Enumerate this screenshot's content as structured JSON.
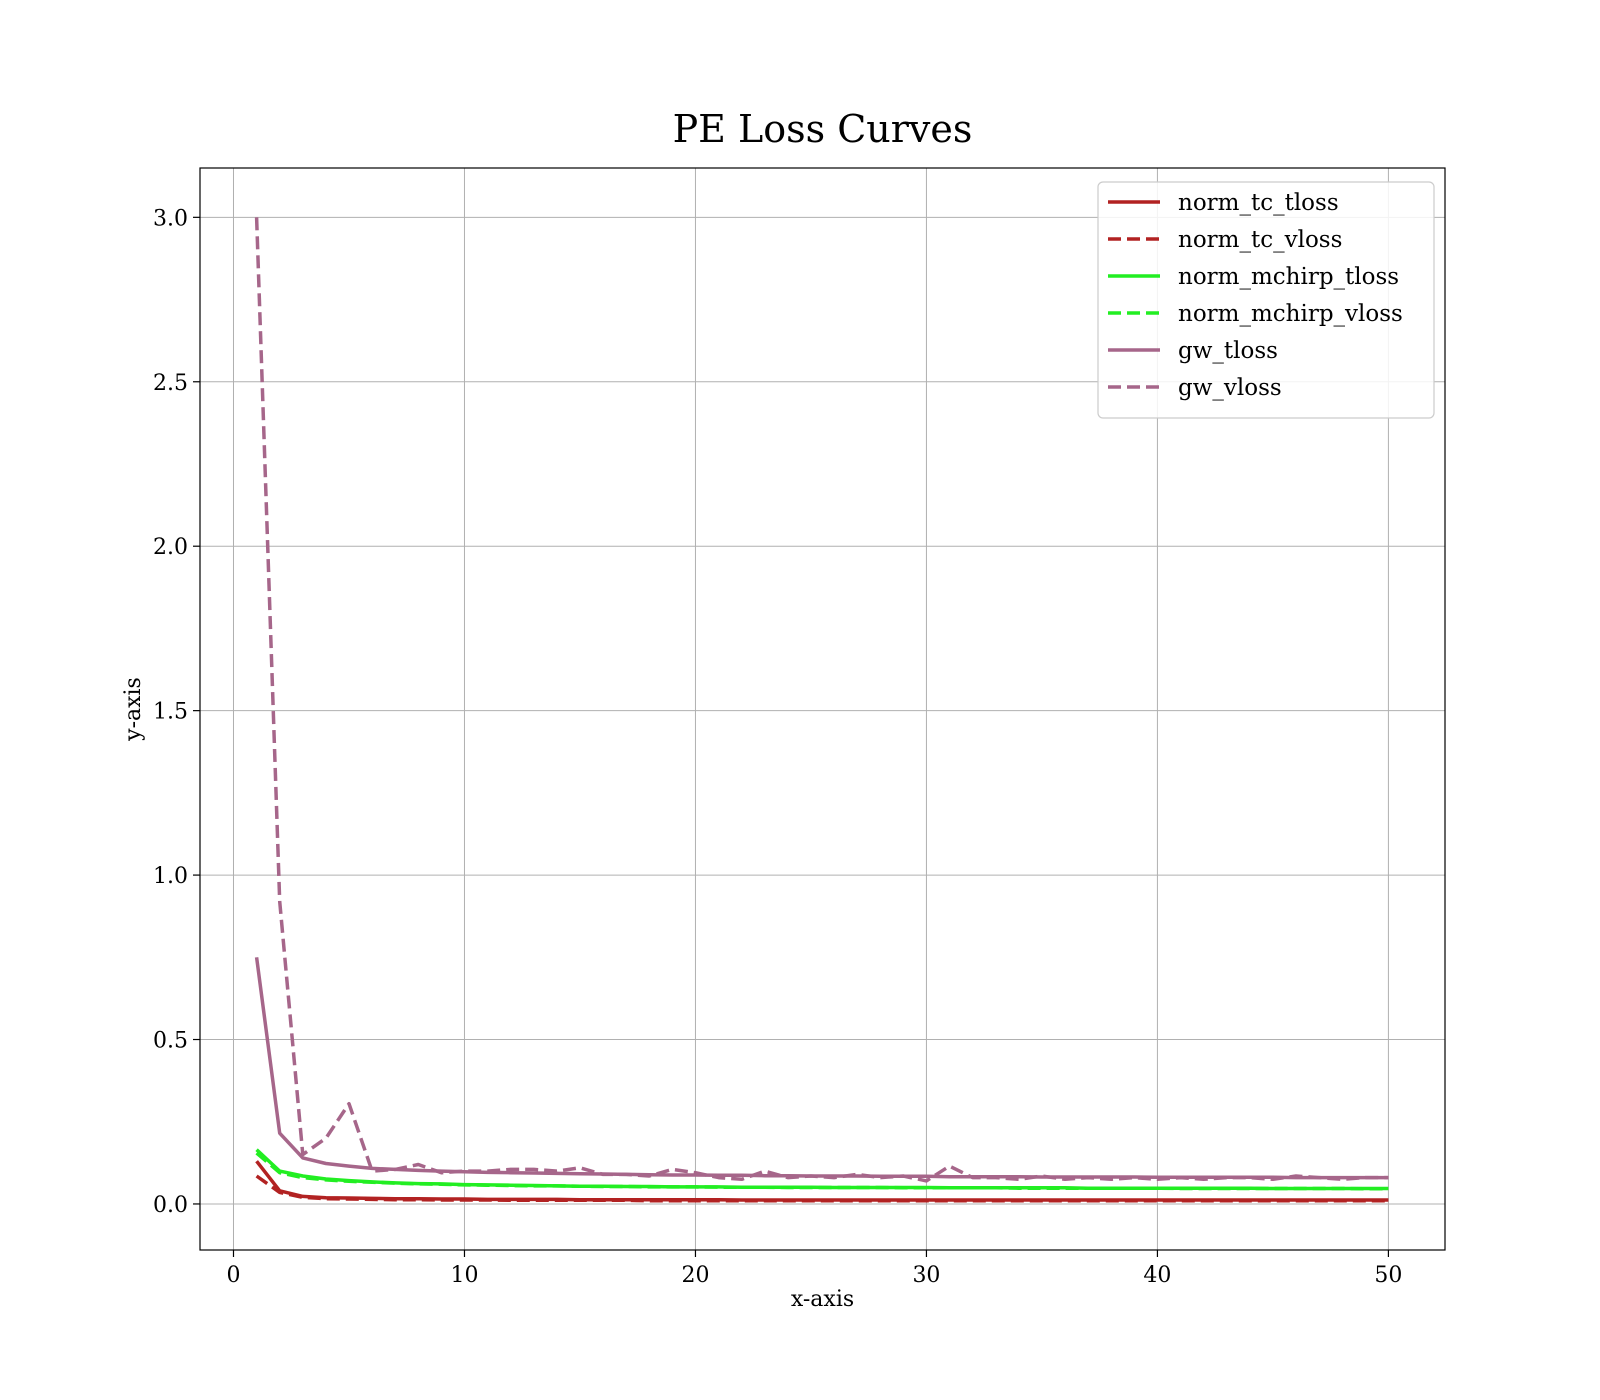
{
  "chart_data": {
    "type": "line",
    "title": "PE Loss Curves",
    "xlabel": "x-axis",
    "ylabel": "y-axis",
    "xlim": [
      -1.45,
      52.45
    ],
    "ylim": [
      -0.14,
      3.15
    ],
    "xticks": [
      0,
      10,
      20,
      30,
      40,
      50
    ],
    "yticks": [
      0.0,
      0.5,
      1.0,
      1.5,
      2.0,
      2.5,
      3.0
    ],
    "xtick_labels": [
      "0",
      "10",
      "20",
      "30",
      "40",
      "50"
    ],
    "ytick_labels": [
      "0.0",
      "0.5",
      "1.0",
      "1.5",
      "2.0",
      "2.5",
      "3.0"
    ],
    "grid": true,
    "legend_position": "top-right",
    "series": [
      {
        "name": "norm_tc_tloss",
        "color": "#b22222",
        "dash": "solid",
        "x": [
          1,
          2,
          3,
          4,
          5,
          6,
          7,
          8,
          9,
          10,
          11,
          12,
          13,
          14,
          15,
          16,
          17,
          18,
          19,
          20,
          21,
          22,
          23,
          24,
          25,
          26,
          27,
          28,
          29,
          30,
          31,
          32,
          33,
          34,
          35,
          36,
          37,
          38,
          39,
          40,
          41,
          42,
          43,
          44,
          45,
          46,
          47,
          48,
          49,
          50
        ],
        "y": [
          0.13,
          0.04,
          0.023,
          0.019,
          0.018,
          0.017,
          0.016,
          0.016,
          0.015,
          0.015,
          0.014,
          0.014,
          0.014,
          0.014,
          0.013,
          0.013,
          0.013,
          0.013,
          0.013,
          0.013,
          0.013,
          0.012,
          0.012,
          0.012,
          0.012,
          0.012,
          0.012,
          0.012,
          0.012,
          0.012,
          0.012,
          0.012,
          0.012,
          0.012,
          0.012,
          0.012,
          0.012,
          0.012,
          0.012,
          0.012,
          0.012,
          0.012,
          0.012,
          0.012,
          0.012,
          0.012,
          0.012,
          0.012,
          0.012,
          0.012
        ]
      },
      {
        "name": "norm_tc_vloss",
        "color": "#b22222",
        "dash": "dashed",
        "x": [
          1,
          2,
          3,
          4,
          5,
          6,
          7,
          8,
          9,
          10,
          11,
          12,
          13,
          14,
          15,
          16,
          17,
          18,
          19,
          20,
          21,
          22,
          23,
          24,
          25,
          26,
          27,
          28,
          29,
          30,
          31,
          32,
          33,
          34,
          35,
          36,
          37,
          38,
          39,
          40,
          41,
          42,
          43,
          44,
          45,
          46,
          47,
          48,
          49,
          50
        ],
        "y": [
          0.085,
          0.035,
          0.02,
          0.016,
          0.015,
          0.014,
          0.013,
          0.013,
          0.012,
          0.012,
          0.012,
          0.011,
          0.011,
          0.011,
          0.011,
          0.011,
          0.011,
          0.01,
          0.01,
          0.01,
          0.01,
          0.01,
          0.01,
          0.01,
          0.01,
          0.01,
          0.01,
          0.01,
          0.01,
          0.01,
          0.01,
          0.01,
          0.01,
          0.01,
          0.01,
          0.01,
          0.01,
          0.01,
          0.01,
          0.01,
          0.01,
          0.01,
          0.01,
          0.01,
          0.01,
          0.01,
          0.01,
          0.01,
          0.01,
          0.01
        ]
      },
      {
        "name": "norm_mchirp_tloss",
        "color": "#22ee22",
        "dash": "solid",
        "x": [
          1,
          2,
          3,
          4,
          5,
          6,
          7,
          8,
          9,
          10,
          11,
          12,
          13,
          14,
          15,
          16,
          17,
          18,
          19,
          20,
          21,
          22,
          23,
          24,
          25,
          26,
          27,
          28,
          29,
          30,
          31,
          32,
          33,
          34,
          35,
          36,
          37,
          38,
          39,
          40,
          41,
          42,
          43,
          44,
          45,
          46,
          47,
          48,
          49,
          50
        ],
        "y": [
          0.165,
          0.1,
          0.085,
          0.076,
          0.071,
          0.067,
          0.064,
          0.062,
          0.061,
          0.059,
          0.058,
          0.057,
          0.056,
          0.055,
          0.054,
          0.054,
          0.053,
          0.053,
          0.052,
          0.052,
          0.052,
          0.051,
          0.051,
          0.051,
          0.051,
          0.05,
          0.05,
          0.05,
          0.05,
          0.05,
          0.049,
          0.049,
          0.049,
          0.049,
          0.049,
          0.049,
          0.048,
          0.048,
          0.048,
          0.048,
          0.048,
          0.048,
          0.048,
          0.048,
          0.047,
          0.047,
          0.047,
          0.047,
          0.047,
          0.047
        ]
      },
      {
        "name": "norm_mchirp_vloss",
        "color": "#22ee22",
        "dash": "dashed",
        "x": [
          1,
          2,
          3,
          4,
          5,
          6,
          7,
          8,
          9,
          10,
          11,
          12,
          13,
          14,
          15,
          16,
          17,
          18,
          19,
          20,
          21,
          22,
          23,
          24,
          25,
          26,
          27,
          28,
          29,
          30,
          31,
          32,
          33,
          34,
          35,
          36,
          37,
          38,
          39,
          40,
          41,
          42,
          43,
          44,
          45,
          46,
          47,
          48,
          49,
          50
        ],
        "y": [
          0.155,
          0.095,
          0.08,
          0.073,
          0.069,
          0.066,
          0.063,
          0.061,
          0.06,
          0.058,
          0.057,
          0.056,
          0.055,
          0.055,
          0.054,
          0.053,
          0.053,
          0.052,
          0.052,
          0.052,
          0.051,
          0.051,
          0.051,
          0.05,
          0.05,
          0.05,
          0.05,
          0.05,
          0.049,
          0.049,
          0.049,
          0.049,
          0.049,
          0.048,
          0.048,
          0.048,
          0.048,
          0.048,
          0.048,
          0.048,
          0.047,
          0.047,
          0.047,
          0.047,
          0.047,
          0.047,
          0.047,
          0.047,
          0.046,
          0.046
        ]
      },
      {
        "name": "gw_tloss",
        "color": "#a6668a",
        "dash": "solid",
        "x": [
          1,
          2,
          3,
          4,
          5,
          6,
          7,
          8,
          9,
          10,
          11,
          12,
          13,
          14,
          15,
          16,
          17,
          18,
          19,
          20,
          21,
          22,
          23,
          24,
          25,
          26,
          27,
          28,
          29,
          30,
          31,
          32,
          33,
          34,
          35,
          36,
          37,
          38,
          39,
          40,
          41,
          42,
          43,
          44,
          45,
          46,
          47,
          48,
          49,
          50
        ],
        "y": [
          0.75,
          0.215,
          0.14,
          0.123,
          0.115,
          0.108,
          0.105,
          0.102,
          0.1,
          0.098,
          0.096,
          0.095,
          0.094,
          0.093,
          0.092,
          0.091,
          0.09,
          0.089,
          0.088,
          0.088,
          0.087,
          0.087,
          0.086,
          0.086,
          0.085,
          0.085,
          0.085,
          0.084,
          0.084,
          0.084,
          0.083,
          0.083,
          0.083,
          0.083,
          0.082,
          0.082,
          0.082,
          0.082,
          0.082,
          0.081,
          0.081,
          0.081,
          0.081,
          0.081,
          0.081,
          0.08,
          0.08,
          0.08,
          0.08,
          0.08
        ]
      },
      {
        "name": "gw_vloss",
        "color": "#a6668a",
        "dash": "dashed",
        "x": [
          1,
          2,
          3,
          4,
          5,
          6,
          7,
          8,
          9,
          10,
          11,
          12,
          13,
          14,
          15,
          16,
          17,
          18,
          19,
          20,
          21,
          22,
          23,
          24,
          25,
          26,
          27,
          28,
          29,
          30,
          31,
          32,
          33,
          34,
          35,
          36,
          37,
          38,
          39,
          40,
          41,
          42,
          43,
          44,
          45,
          46,
          47,
          48,
          49,
          50
        ],
        "y": [
          3.0,
          0.92,
          0.15,
          0.2,
          0.305,
          0.1,
          0.105,
          0.12,
          0.095,
          0.1,
          0.1,
          0.105,
          0.105,
          0.1,
          0.11,
          0.09,
          0.09,
          0.085,
          0.105,
          0.095,
          0.08,
          0.075,
          0.1,
          0.08,
          0.085,
          0.08,
          0.09,
          0.08,
          0.085,
          0.07,
          0.115,
          0.08,
          0.08,
          0.075,
          0.085,
          0.075,
          0.08,
          0.075,
          0.08,
          0.075,
          0.08,
          0.075,
          0.08,
          0.08,
          0.075,
          0.085,
          0.08,
          0.075,
          0.08,
          0.08
        ]
      }
    ]
  }
}
